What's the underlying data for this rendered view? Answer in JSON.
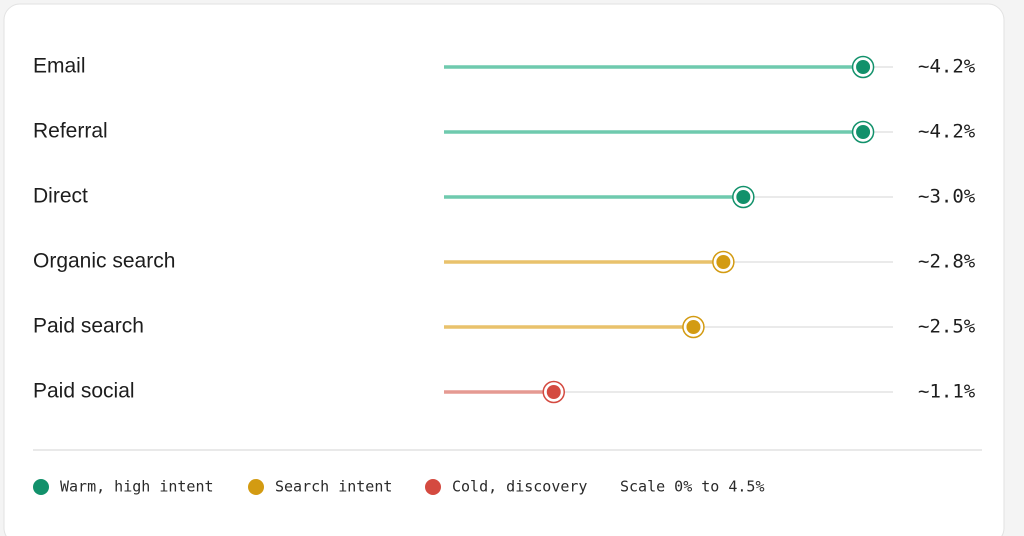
{
  "chart_data": {
    "type": "lollipop",
    "xlim": [
      0,
      4.5
    ],
    "scale_note": "Scale 0% to 4.5%",
    "series": [
      {
        "name": "Warm, high intent",
        "color": "#12916b",
        "line_color": "#6fcaae",
        "categories": [
          "Email",
          "Referral",
          "Direct"
        ],
        "values": [
          4.2,
          4.2,
          3.0
        ],
        "value_labels": [
          "~4.2%",
          "~4.2%",
          "~3.0%"
        ]
      },
      {
        "name": "Search intent",
        "color": "#d39b12",
        "line_color": "#e9c26c",
        "categories": [
          "Organic search",
          "Paid search"
        ],
        "values": [
          2.8,
          2.5
        ],
        "value_labels": [
          "~2.8%",
          "~2.5%"
        ]
      },
      {
        "name": "Cold, discovery",
        "color": "#d44a40",
        "line_color": "#e59a92",
        "categories": [
          "Paid social"
        ],
        "values": [
          1.1
        ],
        "value_labels": [
          "~1.1%"
        ]
      }
    ]
  }
}
